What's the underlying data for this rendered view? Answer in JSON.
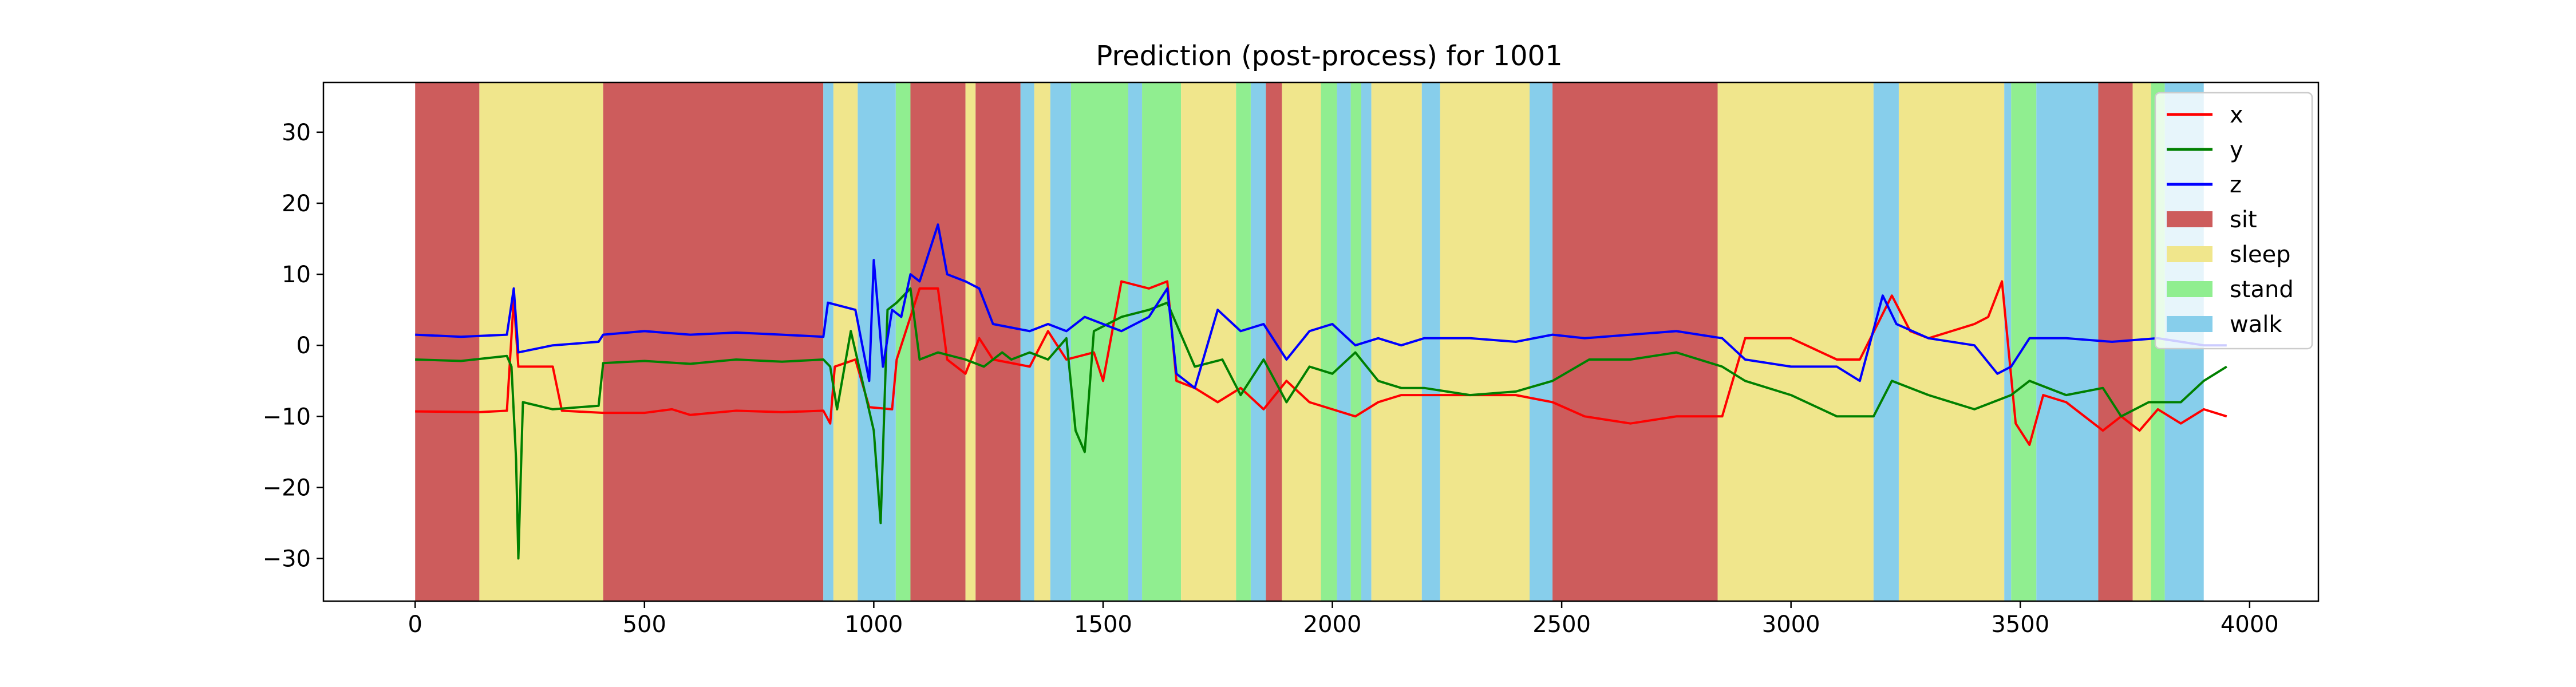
{
  "chart_data": {
    "type": "line",
    "title": "Prediction (post-process) for 1001",
    "xlabel": "",
    "ylabel": "",
    "xlim": [
      -200,
      4150
    ],
    "ylim": [
      -36,
      37
    ],
    "x_ticks": [
      0,
      500,
      1000,
      1500,
      2000,
      2500,
      3000,
      3500,
      4000
    ],
    "y_ticks": [
      -30,
      -20,
      -10,
      0,
      10,
      20,
      30
    ],
    "grid": false,
    "legend_position": "top-right",
    "colors": {
      "x": "#ff0000",
      "y": "#008000",
      "z": "#0000ff",
      "sit": "#cd5c5c",
      "sleep": "#f0e68c",
      "stand": "#90ee90",
      "walk": "#87ceeb"
    },
    "series": [
      {
        "name": "x",
        "color": "#ff0000",
        "points": [
          [
            0,
            -9.3
          ],
          [
            140,
            -9.4
          ],
          [
            200,
            -9.2
          ],
          [
            215,
            6.5
          ],
          [
            225,
            -3
          ],
          [
            300,
            -3
          ],
          [
            320,
            -9.2
          ],
          [
            410,
            -9.5
          ],
          [
            500,
            -9.5
          ],
          [
            560,
            -9
          ],
          [
            600,
            -9.8
          ],
          [
            700,
            -9.2
          ],
          [
            800,
            -9.4
          ],
          [
            890,
            -9.2
          ],
          [
            905,
            -11
          ],
          [
            915,
            -3
          ],
          [
            960,
            -2
          ],
          [
            990,
            -8.7
          ],
          [
            1040,
            -9
          ],
          [
            1050,
            -2
          ],
          [
            1100,
            8
          ],
          [
            1140,
            8
          ],
          [
            1160,
            -2
          ],
          [
            1200,
            -4
          ],
          [
            1230,
            1
          ],
          [
            1260,
            -2
          ],
          [
            1340,
            -3
          ],
          [
            1380,
            2
          ],
          [
            1420,
            -2
          ],
          [
            1480,
            -1
          ],
          [
            1500,
            -5
          ],
          [
            1540,
            9
          ],
          [
            1600,
            8
          ],
          [
            1640,
            9
          ],
          [
            1660,
            -5
          ],
          [
            1700,
            -6
          ],
          [
            1750,
            -8
          ],
          [
            1800,
            -6
          ],
          [
            1850,
            -9
          ],
          [
            1900,
            -5
          ],
          [
            1950,
            -8
          ],
          [
            2000,
            -9
          ],
          [
            2050,
            -10
          ],
          [
            2100,
            -8
          ],
          [
            2150,
            -7
          ],
          [
            2200,
            -7
          ],
          [
            2300,
            -7
          ],
          [
            2400,
            -7
          ],
          [
            2480,
            -8
          ],
          [
            2550,
            -10
          ],
          [
            2650,
            -11
          ],
          [
            2750,
            -10
          ],
          [
            2850,
            -10
          ],
          [
            2900,
            1
          ],
          [
            3000,
            1
          ],
          [
            3100,
            -2
          ],
          [
            3150,
            -2
          ],
          [
            3220,
            7
          ],
          [
            3260,
            2
          ],
          [
            3300,
            1
          ],
          [
            3350,
            2
          ],
          [
            3400,
            3
          ],
          [
            3430,
            4
          ],
          [
            3460,
            9
          ],
          [
            3490,
            -11
          ],
          [
            3520,
            -14
          ],
          [
            3550,
            -7
          ],
          [
            3600,
            -8
          ],
          [
            3680,
            -12
          ],
          [
            3720,
            -10
          ],
          [
            3760,
            -12
          ],
          [
            3800,
            -9
          ],
          [
            3850,
            -11
          ],
          [
            3900,
            -9
          ],
          [
            3950,
            -10
          ]
        ]
      },
      {
        "name": "y",
        "color": "#008000",
        "points": [
          [
            0,
            -2
          ],
          [
            100,
            -2.2
          ],
          [
            200,
            -1.5
          ],
          [
            210,
            -3
          ],
          [
            220,
            -16
          ],
          [
            225,
            -30
          ],
          [
            235,
            -8
          ],
          [
            300,
            -9
          ],
          [
            400,
            -8.5
          ],
          [
            410,
            -2.5
          ],
          [
            500,
            -2.2
          ],
          [
            600,
            -2.6
          ],
          [
            700,
            -2
          ],
          [
            800,
            -2.3
          ],
          [
            890,
            -2
          ],
          [
            905,
            -3
          ],
          [
            920,
            -9
          ],
          [
            950,
            2
          ],
          [
            1000,
            -12
          ],
          [
            1015,
            -25
          ],
          [
            1030,
            5
          ],
          [
            1050,
            6
          ],
          [
            1080,
            8
          ],
          [
            1100,
            -2
          ],
          [
            1140,
            -1
          ],
          [
            1200,
            -2
          ],
          [
            1240,
            -3
          ],
          [
            1280,
            -1
          ],
          [
            1300,
            -2
          ],
          [
            1340,
            -1
          ],
          [
            1380,
            -2
          ],
          [
            1420,
            1
          ],
          [
            1440,
            -12
          ],
          [
            1460,
            -15
          ],
          [
            1480,
            2
          ],
          [
            1540,
            4
          ],
          [
            1600,
            5
          ],
          [
            1640,
            6
          ],
          [
            1660,
            3
          ],
          [
            1700,
            -3
          ],
          [
            1760,
            -2
          ],
          [
            1800,
            -7
          ],
          [
            1850,
            -2
          ],
          [
            1900,
            -8
          ],
          [
            1950,
            -3
          ],
          [
            2000,
            -4
          ],
          [
            2050,
            -1
          ],
          [
            2100,
            -5
          ],
          [
            2150,
            -6
          ],
          [
            2200,
            -6
          ],
          [
            2300,
            -7
          ],
          [
            2400,
            -6.5
          ],
          [
            2480,
            -5
          ],
          [
            2560,
            -2
          ],
          [
            2650,
            -2
          ],
          [
            2750,
            -1
          ],
          [
            2850,
            -3
          ],
          [
            2900,
            -5
          ],
          [
            3000,
            -7
          ],
          [
            3100,
            -10
          ],
          [
            3180,
            -10
          ],
          [
            3220,
            -5
          ],
          [
            3300,
            -7
          ],
          [
            3400,
            -9
          ],
          [
            3480,
            -7
          ],
          [
            3520,
            -5
          ],
          [
            3600,
            -7
          ],
          [
            3680,
            -6
          ],
          [
            3720,
            -10
          ],
          [
            3780,
            -8
          ],
          [
            3850,
            -8
          ],
          [
            3900,
            -5
          ],
          [
            3950,
            -3
          ]
        ]
      },
      {
        "name": "z",
        "color": "#0000ff",
        "points": [
          [
            0,
            1.5
          ],
          [
            100,
            1.2
          ],
          [
            200,
            1.5
          ],
          [
            215,
            8
          ],
          [
            225,
            -1
          ],
          [
            300,
            0
          ],
          [
            400,
            0.5
          ],
          [
            410,
            1.5
          ],
          [
            500,
            2
          ],
          [
            600,
            1.5
          ],
          [
            700,
            1.8
          ],
          [
            800,
            1.5
          ],
          [
            890,
            1.2
          ],
          [
            900,
            6
          ],
          [
            960,
            5
          ],
          [
            990,
            -5
          ],
          [
            1000,
            12
          ],
          [
            1020,
            -3
          ],
          [
            1040,
            5
          ],
          [
            1060,
            4
          ],
          [
            1080,
            10
          ],
          [
            1100,
            9
          ],
          [
            1140,
            17
          ],
          [
            1160,
            10
          ],
          [
            1200,
            9
          ],
          [
            1230,
            8
          ],
          [
            1260,
            3
          ],
          [
            1340,
            2
          ],
          [
            1380,
            3
          ],
          [
            1420,
            2
          ],
          [
            1460,
            4
          ],
          [
            1500,
            3
          ],
          [
            1540,
            2
          ],
          [
            1600,
            4
          ],
          [
            1640,
            8
          ],
          [
            1660,
            -4
          ],
          [
            1700,
            -6
          ],
          [
            1750,
            5
          ],
          [
            1800,
            2
          ],
          [
            1850,
            3
          ],
          [
            1900,
            -2
          ],
          [
            1950,
            2
          ],
          [
            2000,
            3
          ],
          [
            2050,
            0
          ],
          [
            2100,
            1
          ],
          [
            2150,
            0
          ],
          [
            2200,
            1
          ],
          [
            2300,
            1
          ],
          [
            2400,
            0.5
          ],
          [
            2480,
            1.5
          ],
          [
            2550,
            1
          ],
          [
            2650,
            1.5
          ],
          [
            2750,
            2
          ],
          [
            2850,
            1
          ],
          [
            2900,
            -2
          ],
          [
            3000,
            -3
          ],
          [
            3100,
            -3
          ],
          [
            3150,
            -5
          ],
          [
            3200,
            7
          ],
          [
            3230,
            3
          ],
          [
            3300,
            1
          ],
          [
            3400,
            0
          ],
          [
            3450,
            -4
          ],
          [
            3480,
            -3
          ],
          [
            3520,
            1
          ],
          [
            3600,
            1
          ],
          [
            3700,
            0.5
          ],
          [
            3800,
            1
          ],
          [
            3900,
            0
          ],
          [
            3950,
            0
          ]
        ]
      }
    ],
    "regions": [
      {
        "label": "sit",
        "start": 0,
        "end": 140
      },
      {
        "label": "sleep",
        "start": 140,
        "end": 410
      },
      {
        "label": "sit",
        "start": 410,
        "end": 890
      },
      {
        "label": "walk",
        "start": 890,
        "end": 912
      },
      {
        "label": "sleep",
        "start": 912,
        "end": 965
      },
      {
        "label": "walk",
        "start": 965,
        "end": 1048
      },
      {
        "label": "stand",
        "start": 1048,
        "end": 1080
      },
      {
        "label": "sit",
        "start": 1080,
        "end": 1200
      },
      {
        "label": "sleep",
        "start": 1200,
        "end": 1222
      },
      {
        "label": "sit",
        "start": 1222,
        "end": 1320
      },
      {
        "label": "walk",
        "start": 1320,
        "end": 1350
      },
      {
        "label": "sleep",
        "start": 1350,
        "end": 1385
      },
      {
        "label": "walk",
        "start": 1385,
        "end": 1430
      },
      {
        "label": "stand",
        "start": 1430,
        "end": 1555
      },
      {
        "label": "walk",
        "start": 1555,
        "end": 1585
      },
      {
        "label": "stand",
        "start": 1585,
        "end": 1670
      },
      {
        "label": "sleep",
        "start": 1670,
        "end": 1790
      },
      {
        "label": "stand",
        "start": 1790,
        "end": 1822
      },
      {
        "label": "walk",
        "start": 1822,
        "end": 1855
      },
      {
        "label": "sit",
        "start": 1855,
        "end": 1890
      },
      {
        "label": "sleep",
        "start": 1890,
        "end": 1975
      },
      {
        "label": "stand",
        "start": 1975,
        "end": 2010
      },
      {
        "label": "walk",
        "start": 2010,
        "end": 2040
      },
      {
        "label": "stand",
        "start": 2040,
        "end": 2063
      },
      {
        "label": "walk",
        "start": 2063,
        "end": 2085
      },
      {
        "label": "sleep",
        "start": 2085,
        "end": 2195
      },
      {
        "label": "walk",
        "start": 2195,
        "end": 2235
      },
      {
        "label": "sleep",
        "start": 2235,
        "end": 2430
      },
      {
        "label": "walk",
        "start": 2430,
        "end": 2480
      },
      {
        "label": "sit",
        "start": 2480,
        "end": 2840
      },
      {
        "label": "sleep",
        "start": 2840,
        "end": 3180
      },
      {
        "label": "walk",
        "start": 3180,
        "end": 3235
      },
      {
        "label": "sleep",
        "start": 3235,
        "end": 3465
      },
      {
        "label": "walk",
        "start": 3465,
        "end": 3480
      },
      {
        "label": "stand",
        "start": 3480,
        "end": 3535
      },
      {
        "label": "walk",
        "start": 3535,
        "end": 3670
      },
      {
        "label": "sit",
        "start": 3670,
        "end": 3745
      },
      {
        "label": "sleep",
        "start": 3745,
        "end": 3785
      },
      {
        "label": "stand",
        "start": 3785,
        "end": 3815
      },
      {
        "label": "walk",
        "start": 3815,
        "end": 3900
      }
    ],
    "legend": [
      {
        "label": "x",
        "kind": "line",
        "color": "#ff0000"
      },
      {
        "label": "y",
        "kind": "line",
        "color": "#008000"
      },
      {
        "label": "z",
        "kind": "line",
        "color": "#0000ff"
      },
      {
        "label": "sit",
        "kind": "patch",
        "color": "#cd5c5c"
      },
      {
        "label": "sleep",
        "kind": "patch",
        "color": "#f0e68c"
      },
      {
        "label": "stand",
        "kind": "patch",
        "color": "#90ee90"
      },
      {
        "label": "walk",
        "kind": "patch",
        "color": "#87ceeb"
      }
    ]
  }
}
